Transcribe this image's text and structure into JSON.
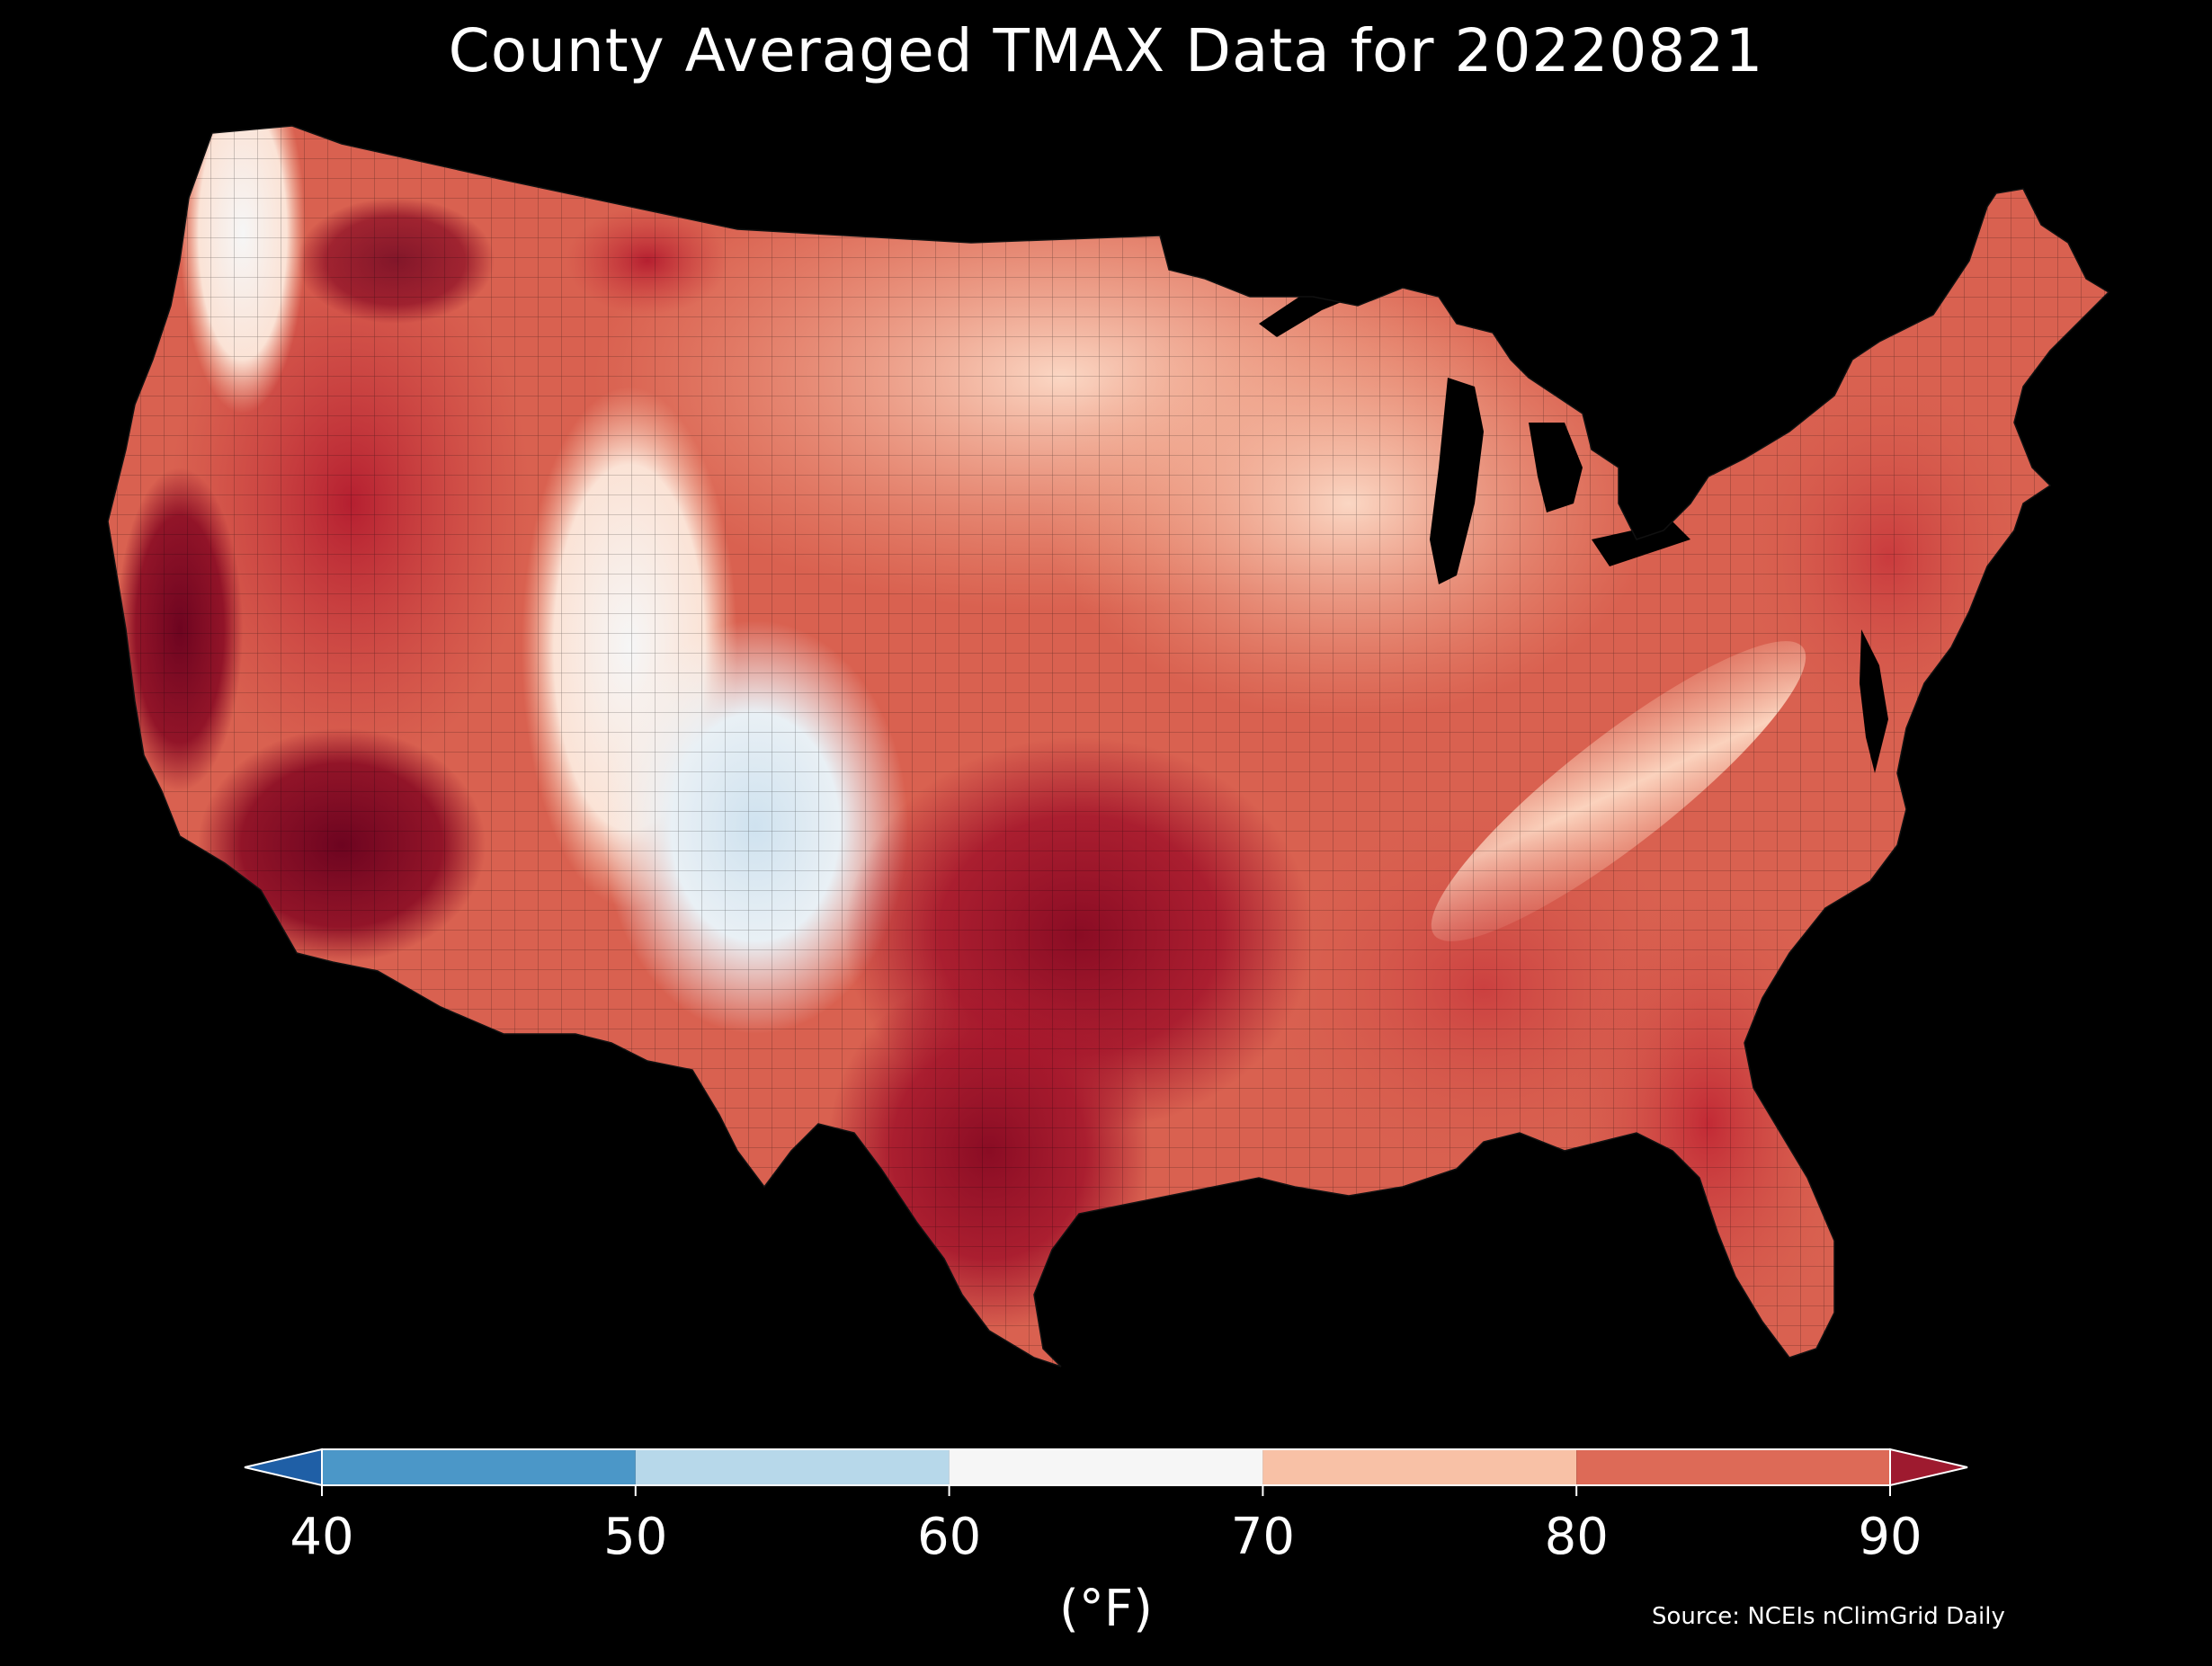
{
  "title": "County Averaged TMAX Data for 20220821",
  "map": {
    "region": "contiguous United States",
    "unit_level": "county",
    "background": "#000000",
    "border_color": "#000000",
    "regions": [
      {
        "name": "pacific-northwest-coast",
        "band": "60-70"
      },
      {
        "name": "central-california-valley",
        "band": ">90"
      },
      {
        "name": "southeast-california-desert",
        "band": ">90"
      },
      {
        "name": "great-basin",
        "band": "80-90"
      },
      {
        "name": "utah-highlands",
        "band": "60-70"
      },
      {
        "name": "colorado-rockies",
        "band": "50-60"
      },
      {
        "name": "northern-plains",
        "band": "70-80"
      },
      {
        "name": "upper-midwest",
        "band": "70-80"
      },
      {
        "name": "texas-oklahoma",
        "band": ">90"
      },
      {
        "name": "southeast",
        "band": "80-90"
      },
      {
        "name": "florida",
        "band": "80-90"
      },
      {
        "name": "northeast",
        "band": "80-90"
      },
      {
        "name": "appalachians",
        "band": "70-80"
      }
    ]
  },
  "colorbar": {
    "label": "(°F)",
    "ticks": [
      "40",
      "50",
      "60",
      "70",
      "80",
      "90"
    ],
    "min": 40,
    "max": 90,
    "extend": "both",
    "under_color": "#1f5fa6",
    "over_color": "#9e1a2f",
    "bins": [
      {
        "from": 40,
        "to": 50,
        "color": "#4b97c8"
      },
      {
        "from": 50,
        "to": 60,
        "color": "#b7d8ea"
      },
      {
        "from": 60,
        "to": 70,
        "color": "#f6f6f6"
      },
      {
        "from": 70,
        "to": 80,
        "color": "#f8c1a6"
      },
      {
        "from": 80,
        "to": 90,
        "color": "#dd6a57"
      }
    ]
  },
  "source": "Source: NCEIs nClimGrid Daily"
}
